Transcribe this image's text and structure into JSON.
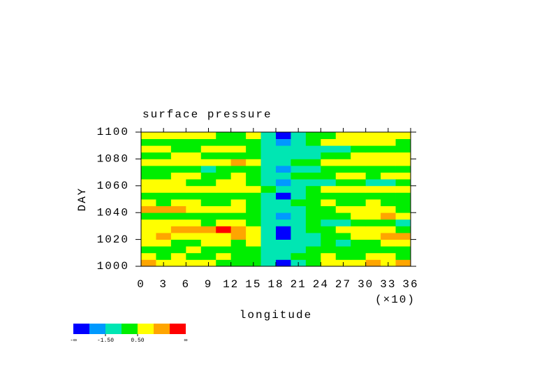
{
  "chart_data": {
    "type": "heatmap",
    "title": "surface pressure",
    "x_label": "longitude",
    "y_label": "DAY",
    "x_multiplier_label": "(×10)",
    "x": [
      1,
      3,
      5,
      7,
      9,
      11,
      13,
      15,
      17,
      19,
      21,
      23,
      25,
      27,
      29,
      31,
      33,
      35
    ],
    "y": [
      1002.5,
      1007.5,
      1012.5,
      1017.5,
      1022.5,
      1027.5,
      1032.5,
      1037.5,
      1042.5,
      1047.5,
      1052.5,
      1057.5,
      1062.5,
      1067.5,
      1072.5,
      1077.5,
      1082.5,
      1087.5,
      1092.5,
      1097.5
    ],
    "z": [
      [
        2,
        1,
        1,
        1,
        1,
        0,
        0,
        0,
        -1,
        -3,
        -1,
        0,
        1,
        1,
        1,
        2,
        1,
        2
      ],
      [
        1,
        0,
        1,
        0,
        0,
        1,
        0,
        0,
        -1,
        -1,
        0,
        0,
        1,
        0,
        0,
        1,
        1,
        0
      ],
      [
        0,
        0,
        0,
        1,
        0,
        0,
        0,
        0,
        -1,
        -1,
        -1,
        0,
        0,
        0,
        0,
        0,
        0,
        0
      ],
      [
        1,
        1,
        0,
        0,
        1,
        1,
        0,
        1,
        -1,
        -1,
        -1,
        -1,
        0,
        -1,
        0,
        0,
        1,
        1
      ],
      [
        1,
        2,
        1,
        1,
        1,
        1,
        2,
        1,
        -1,
        -3,
        -1,
        -1,
        0,
        0,
        1,
        1,
        2,
        2
      ],
      [
        1,
        1,
        2,
        2,
        2,
        3,
        2,
        1,
        -1,
        -3,
        -1,
        0,
        0,
        1,
        1,
        1,
        1,
        0
      ],
      [
        1,
        1,
        1,
        1,
        0,
        1,
        1,
        0,
        -1,
        -1,
        -1,
        0,
        -1,
        -1,
        0,
        0,
        0,
        -1
      ],
      [
        0,
        0,
        0,
        0,
        0,
        0,
        0,
        0,
        -1,
        -2,
        -1,
        0,
        0,
        0,
        1,
        1,
        2,
        1
      ],
      [
        2,
        2,
        2,
        1,
        1,
        1,
        1,
        0,
        -1,
        -1,
        -1,
        0,
        0,
        1,
        1,
        1,
        1,
        0
      ],
      [
        1,
        0,
        1,
        1,
        0,
        0,
        1,
        0,
        -1,
        -1,
        0,
        0,
        1,
        0,
        0,
        1,
        0,
        0
      ],
      [
        0,
        0,
        0,
        0,
        0,
        0,
        0,
        0,
        -1,
        -3,
        -1,
        0,
        0,
        0,
        0,
        0,
        0,
        0
      ],
      [
        1,
        1,
        1,
        1,
        1,
        1,
        1,
        1,
        0,
        -1,
        -1,
        0,
        1,
        1,
        1,
        1,
        1,
        1
      ],
      [
        1,
        1,
        1,
        0,
        0,
        1,
        1,
        0,
        -1,
        -2,
        -1,
        -1,
        -1,
        0,
        0,
        -1,
        -1,
        0
      ],
      [
        0,
        0,
        1,
        1,
        0,
        0,
        1,
        0,
        -1,
        -1,
        0,
        0,
        0,
        1,
        1,
        0,
        1,
        1
      ],
      [
        0,
        0,
        0,
        0,
        -1,
        0,
        0,
        0,
        -1,
        -2,
        -1,
        -1,
        0,
        0,
        0,
        0,
        0,
        0
      ],
      [
        1,
        1,
        1,
        1,
        1,
        1,
        2,
        1,
        -1,
        -1,
        0,
        0,
        1,
        1,
        1,
        1,
        1,
        1
      ],
      [
        0,
        0,
        1,
        1,
        0,
        0,
        0,
        0,
        -1,
        -1,
        -1,
        -1,
        0,
        0,
        1,
        1,
        1,
        1
      ],
      [
        1,
        1,
        0,
        0,
        1,
        1,
        1,
        0,
        -1,
        -1,
        -1,
        -1,
        -1,
        -1,
        0,
        0,
        0,
        0
      ],
      [
        0,
        0,
        0,
        0,
        0,
        0,
        0,
        0,
        -1,
        -2,
        -1,
        0,
        1,
        1,
        1,
        1,
        1,
        0
      ],
      [
        1,
        1,
        1,
        1,
        1,
        0,
        0,
        1,
        -1,
        -3,
        -1,
        0,
        0,
        1,
        1,
        1,
        1,
        1
      ]
    ],
    "levels": [
      -2.5,
      -1.5,
      -0.5,
      0.5,
      1.5,
      2.5
    ],
    "colors": [
      "#0000ff",
      "#0099ff",
      "#00e6b3",
      "#00ee00",
      "#ffff00",
      "#ffa500",
      "#ff0000"
    ],
    "colorbar_ticks": [
      {
        "value": -1.5,
        "label": "-1.50"
      },
      {
        "value": 0.5,
        "label": "0.50"
      }
    ],
    "colorbar_end_labels": [
      "-∞",
      "∞"
    ],
    "xlim": [
      0,
      36
    ],
    "xticks": [
      0,
      3,
      6,
      9,
      12,
      15,
      18,
      21,
      24,
      27,
      30,
      33,
      36
    ],
    "ylim": [
      1000,
      1100
    ],
    "yticks": [
      1000,
      1020,
      1040,
      1060,
      1080,
      1100
    ]
  }
}
